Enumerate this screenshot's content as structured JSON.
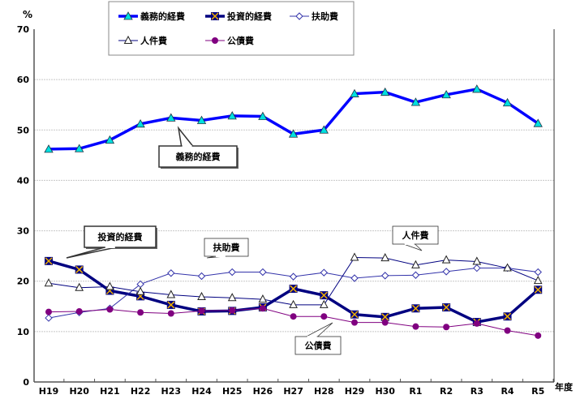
{
  "chart_data": {
    "type": "line",
    "title": "",
    "xlabel": "年度",
    "ylabel": "%",
    "ylim": [
      0,
      70
    ],
    "yticks": [
      0,
      10,
      20,
      30,
      40,
      50,
      60,
      70
    ],
    "grid": true,
    "legend_position": "top",
    "categories": [
      "H19",
      "H20",
      "H21",
      "H22",
      "H23",
      "H24",
      "H25",
      "H26",
      "H27",
      "H28",
      "H29",
      "H30",
      "R1",
      "R2",
      "R3",
      "R4",
      "R5"
    ],
    "series": [
      {
        "name": "義務的経費",
        "color": "#0000FF",
        "marker": "triangle-cyan",
        "values": [
          46.2,
          46.3,
          48.0,
          51.2,
          52.4,
          51.9,
          52.8,
          52.7,
          49.2,
          50.0,
          57.2,
          57.5,
          55.5,
          57.0,
          58.1,
          55.4,
          51.3
        ]
      },
      {
        "name": "投資的経費",
        "color": "#000080",
        "marker": "x-square",
        "values": [
          24.0,
          22.3,
          18.1,
          17.0,
          15.3,
          14.0,
          14.1,
          14.8,
          18.5,
          17.2,
          13.4,
          12.9,
          14.6,
          14.8,
          11.9,
          13.0,
          18.3
        ]
      },
      {
        "name": "扶助費",
        "color": "#3333AA",
        "marker": "diamond-open",
        "values": [
          12.7,
          13.8,
          14.6,
          19.4,
          21.6,
          21.0,
          21.8,
          21.8,
          20.9,
          21.7,
          20.6,
          21.1,
          21.2,
          21.9,
          22.6,
          22.6,
          21.8
        ]
      },
      {
        "name": "人件費",
        "color": "#000080",
        "marker": "triangle-open",
        "values": [
          19.6,
          18.7,
          18.9,
          17.9,
          17.3,
          16.9,
          16.7,
          16.4,
          15.3,
          15.3,
          24.7,
          24.6,
          23.2,
          24.2,
          23.9,
          22.6,
          20.1
        ]
      },
      {
        "name": "公債費",
        "color": "#800080",
        "marker": "circle-filled",
        "values": [
          13.9,
          14.0,
          14.4,
          13.8,
          13.6,
          14.1,
          14.2,
          14.6,
          13.0,
          13.0,
          11.8,
          11.8,
          11.0,
          10.9,
          11.6,
          10.2,
          9.2
        ]
      }
    ],
    "annotations": [
      {
        "text": "義務的経費"
      },
      {
        "text": "投資的経費"
      },
      {
        "text": "扶助費"
      },
      {
        "text": "人件費"
      },
      {
        "text": "公債費"
      }
    ]
  }
}
